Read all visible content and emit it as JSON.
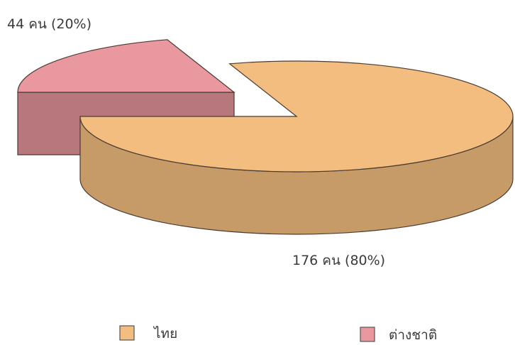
{
  "chart_data": {
    "type": "pie",
    "style": "3d-exploded",
    "slices": [
      {
        "name": "ไทย",
        "value": 176,
        "label": "176 คน (80%)",
        "color": "#f2bd7e"
      },
      {
        "name": "ต่างชาติ",
        "value": 44,
        "label": "44 คน (20%)",
        "color": "#ea98a0"
      }
    ],
    "legend": {
      "placement": "bottom",
      "items": [
        {
          "name": "ไทย",
          "color": "#f2bd7e"
        },
        {
          "name": "ต่างชาติ",
          "color": "#ea98a0"
        }
      ]
    }
  }
}
